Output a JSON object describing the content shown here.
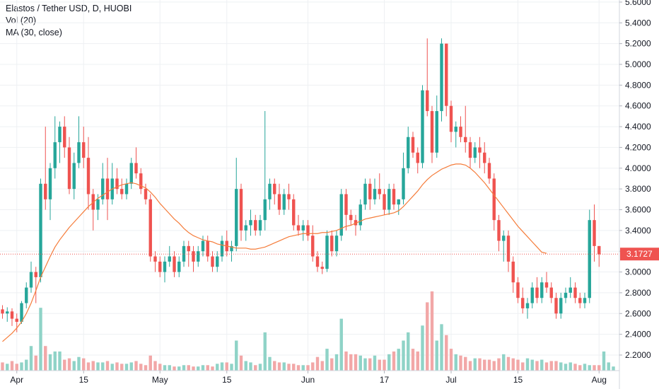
{
  "legend": {
    "title": "Elastos / Tether USD, D, HUOBI",
    "vol": "Vol (20)",
    "ma": "MA (30, close)"
  },
  "colors": {
    "up": "#26a69a",
    "down": "#ef5350",
    "up_volume": "#8fd3c7",
    "down_volume": "#f2a7a7",
    "ma": "#f57c3a",
    "grid": "#eef0f3",
    "last_price": "#ef5350"
  },
  "chart_data": {
    "type": "candlestick",
    "symbol": "Elastos / Tether USD",
    "interval": "D",
    "exchange": "HUOBI",
    "y_axis": {
      "min": 2.05,
      "max": 5.62,
      "ticks": [
        "5.6000",
        "5.4000",
        "5.2000",
        "5.0000",
        "4.8000",
        "4.6000",
        "4.4000",
        "4.2000",
        "4.0000",
        "3.8000",
        "3.6000",
        "3.4000",
        "3.2000",
        "3.0000",
        "2.8000",
        "2.6000",
        "2.4000",
        "2.2000"
      ],
      "last_price": "3.1727"
    },
    "x_axis": {
      "labels": [
        {
          "text": "Apr",
          "day": 3
        },
        {
          "text": "15",
          "day": 17
        },
        {
          "text": "May",
          "day": 33
        },
        {
          "text": "15",
          "day": 47
        },
        {
          "text": "Jun",
          "day": 64
        },
        {
          "text": "17",
          "day": 80
        },
        {
          "text": "Jul",
          "day": 94
        },
        {
          "text": "15",
          "day": 108
        },
        {
          "text": "Aug",
          "day": 125
        }
      ]
    },
    "candles": [
      [
        2.64,
        2.68,
        2.55,
        2.6
      ],
      [
        2.6,
        2.66,
        2.52,
        2.62
      ],
      [
        2.62,
        2.65,
        2.48,
        2.55
      ],
      [
        2.55,
        2.6,
        2.42,
        2.52
      ],
      [
        2.52,
        2.72,
        2.5,
        2.7
      ],
      [
        2.7,
        2.9,
        2.65,
        2.85
      ],
      [
        2.85,
        3.1,
        2.8,
        3.0
      ],
      [
        3.0,
        3.05,
        2.7,
        2.95
      ],
      [
        2.95,
        3.9,
        2.9,
        3.85
      ],
      [
        3.85,
        4.4,
        3.6,
        3.7
      ],
      [
        3.7,
        4.05,
        3.5,
        4.0
      ],
      [
        4.0,
        4.5,
        3.9,
        4.25
      ],
      [
        4.25,
        4.45,
        4.05,
        4.4
      ],
      [
        4.4,
        4.5,
        4.1,
        4.2
      ],
      [
        4.2,
        4.3,
        3.75,
        3.8
      ],
      [
        3.8,
        4.15,
        3.7,
        4.05
      ],
      [
        4.05,
        4.5,
        4.0,
        4.25
      ],
      [
        4.25,
        4.4,
        4.0,
        4.1
      ],
      [
        4.1,
        4.3,
        3.6,
        3.75
      ],
      [
        3.75,
        3.8,
        3.4,
        3.6
      ],
      [
        3.6,
        3.75,
        3.5,
        3.7
      ],
      [
        3.7,
        4.05,
        3.65,
        3.9
      ],
      [
        3.9,
        4.1,
        3.5,
        3.7
      ],
      [
        3.7,
        4.05,
        3.65,
        3.9
      ],
      [
        3.9,
        4.0,
        3.75,
        3.8
      ],
      [
        3.8,
        3.9,
        3.7,
        3.75
      ],
      [
        3.75,
        3.9,
        3.7,
        3.85
      ],
      [
        3.85,
        4.1,
        3.8,
        4.05
      ],
      [
        4.05,
        4.2,
        3.9,
        3.95
      ],
      [
        3.95,
        4.0,
        3.75,
        3.8
      ],
      [
        3.8,
        3.85,
        3.65,
        3.7
      ],
      [
        3.7,
        3.75,
        3.1,
        3.15
      ],
      [
        3.15,
        3.2,
        3.0,
        3.1
      ],
      [
        3.1,
        3.15,
        2.95,
        3.0
      ],
      [
        3.0,
        3.15,
        2.9,
        3.1
      ],
      [
        3.1,
        3.25,
        3.05,
        3.15
      ],
      [
        3.15,
        3.2,
        2.95,
        3.0
      ],
      [
        3.0,
        3.15,
        2.95,
        3.1
      ],
      [
        3.1,
        3.3,
        3.05,
        3.25
      ],
      [
        3.25,
        3.3,
        3.05,
        3.2
      ],
      [
        3.2,
        3.25,
        3.0,
        3.1
      ],
      [
        3.1,
        3.25,
        3.05,
        3.2
      ],
      [
        3.2,
        3.35,
        3.15,
        3.3
      ],
      [
        3.3,
        3.35,
        3.1,
        3.15
      ],
      [
        3.15,
        3.2,
        3.0,
        3.05
      ],
      [
        3.05,
        3.2,
        3.0,
        3.15
      ],
      [
        3.15,
        3.35,
        3.1,
        3.3
      ],
      [
        3.3,
        3.4,
        3.15,
        3.2
      ],
      [
        3.2,
        3.3,
        3.1,
        3.25
      ],
      [
        3.25,
        4.1,
        3.2,
        3.8
      ],
      [
        3.8,
        3.85,
        3.3,
        3.4
      ],
      [
        3.4,
        3.5,
        3.3,
        3.45
      ],
      [
        3.45,
        3.6,
        3.35,
        3.5
      ],
      [
        3.5,
        3.55,
        3.35,
        3.4
      ],
      [
        3.4,
        3.55,
        3.35,
        3.5
      ],
      [
        3.5,
        4.55,
        3.4,
        3.7
      ],
      [
        3.7,
        3.9,
        3.6,
        3.85
      ],
      [
        3.85,
        3.9,
        3.65,
        3.75
      ],
      [
        3.75,
        3.85,
        3.55,
        3.6
      ],
      [
        3.6,
        3.8,
        3.55,
        3.75
      ],
      [
        3.75,
        3.85,
        3.6,
        3.7
      ],
      [
        3.7,
        3.75,
        3.4,
        3.45
      ],
      [
        3.45,
        3.55,
        3.35,
        3.4
      ],
      [
        3.4,
        3.5,
        3.3,
        3.45
      ],
      [
        3.45,
        3.5,
        3.3,
        3.35
      ],
      [
        3.35,
        3.45,
        3.1,
        3.15
      ],
      [
        3.15,
        3.2,
        3.0,
        3.05
      ],
      [
        3.05,
        3.1,
        2.98,
        3.03
      ],
      [
        3.03,
        3.4,
        3.0,
        3.35
      ],
      [
        3.35,
        3.4,
        3.15,
        3.2
      ],
      [
        3.2,
        3.4,
        3.15,
        3.35
      ],
      [
        3.35,
        3.8,
        3.3,
        3.75
      ],
      [
        3.75,
        3.8,
        3.4,
        3.55
      ],
      [
        3.55,
        3.6,
        3.45,
        3.5
      ],
      [
        3.5,
        3.55,
        3.35,
        3.45
      ],
      [
        3.45,
        3.7,
        3.4,
        3.65
      ],
      [
        3.65,
        3.9,
        3.6,
        3.85
      ],
      [
        3.85,
        3.9,
        3.6,
        3.7
      ],
      [
        3.7,
        3.9,
        3.65,
        3.8
      ],
      [
        3.8,
        3.95,
        3.7,
        3.75
      ],
      [
        3.75,
        3.8,
        3.55,
        3.6
      ],
      [
        3.6,
        3.85,
        3.55,
        3.8
      ],
      [
        3.8,
        3.85,
        3.6,
        3.65
      ],
      [
        3.65,
        3.7,
        3.55,
        3.7
      ],
      [
        3.7,
        4.15,
        3.65,
        4.0
      ],
      [
        4.0,
        4.4,
        3.95,
        4.3
      ],
      [
        4.3,
        4.35,
        4.1,
        4.15
      ],
      [
        4.15,
        4.2,
        3.95,
        4.05
      ],
      [
        4.05,
        4.8,
        4.0,
        4.75
      ],
      [
        4.75,
        5.25,
        4.5,
        4.55
      ],
      [
        4.55,
        4.6,
        4.05,
        4.15
      ],
      [
        4.15,
        4.7,
        4.1,
        4.55
      ],
      [
        4.55,
        5.25,
        4.45,
        5.2
      ],
      [
        5.2,
        5.2,
        4.5,
        4.6
      ],
      [
        4.6,
        4.65,
        4.25,
        4.35
      ],
      [
        4.35,
        4.45,
        4.2,
        4.4
      ],
      [
        4.4,
        4.5,
        4.25,
        4.3
      ],
      [
        4.3,
        4.6,
        4.15,
        4.25
      ],
      [
        4.25,
        4.3,
        4.0,
        4.1
      ],
      [
        4.1,
        4.25,
        4.05,
        4.2
      ],
      [
        4.2,
        4.3,
        4.0,
        4.15
      ],
      [
        4.15,
        4.25,
        3.95,
        4.05
      ],
      [
        4.05,
        4.1,
        3.85,
        3.9
      ],
      [
        3.9,
        3.95,
        3.4,
        3.5
      ],
      [
        3.5,
        3.55,
        3.2,
        3.3
      ],
      [
        3.3,
        3.4,
        3.1,
        3.35
      ],
      [
        3.35,
        3.4,
        3.0,
        3.1
      ],
      [
        3.1,
        3.15,
        2.8,
        2.9
      ],
      [
        2.9,
        2.95,
        2.7,
        2.75
      ],
      [
        2.75,
        2.85,
        2.6,
        2.65
      ],
      [
        2.65,
        2.75,
        2.55,
        2.7
      ],
      [
        2.7,
        2.9,
        2.65,
        2.85
      ],
      [
        2.85,
        2.95,
        2.7,
        2.75
      ],
      [
        2.75,
        2.95,
        2.7,
        2.9
      ],
      [
        2.9,
        3.0,
        2.8,
        2.85
      ],
      [
        2.85,
        2.9,
        2.7,
        2.75
      ],
      [
        2.75,
        2.8,
        2.55,
        2.6
      ],
      [
        2.6,
        2.8,
        2.55,
        2.75
      ],
      [
        2.75,
        2.85,
        2.7,
        2.8
      ],
      [
        2.8,
        2.95,
        2.75,
        2.85
      ],
      [
        2.85,
        2.9,
        2.7,
        2.75
      ],
      [
        2.75,
        2.8,
        2.65,
        2.7
      ],
      [
        2.7,
        2.8,
        2.65,
        2.75
      ],
      [
        2.75,
        3.6,
        2.7,
        3.5
      ],
      [
        3.5,
        3.65,
        3.1,
        3.25
      ],
      [
        3.25,
        3.25,
        3.05,
        3.17
      ]
    ],
    "volumes": [
      0.3,
      0.25,
      0.35,
      0.25,
      0.3,
      0.4,
      0.9,
      0.55,
      2.3,
      0.9,
      0.6,
      0.7,
      0.7,
      0.4,
      0.45,
      0.35,
      0.5,
      0.45,
      0.3,
      0.35,
      0.3,
      0.3,
      0.35,
      0.25,
      0.3,
      0.25,
      0.25,
      0.3,
      0.35,
      0.25,
      0.2,
      0.55,
      0.35,
      0.25,
      0.2,
      0.2,
      0.15,
      0.15,
      0.2,
      0.2,
      0.15,
      0.15,
      0.2,
      0.2,
      0.15,
      0.25,
      0.3,
      0.3,
      0.25,
      1.1,
      0.55,
      0.35,
      0.3,
      0.2,
      0.25,
      1.4,
      0.5,
      0.35,
      0.3,
      0.3,
      0.25,
      0.25,
      0.2,
      0.2,
      0.2,
      0.3,
      0.5,
      0.35,
      0.8,
      0.45,
      0.6,
      1.9,
      0.7,
      0.6,
      0.6,
      0.55,
      0.45,
      0.45,
      0.55,
      0.4,
      0.4,
      0.6,
      0.7,
      0.8,
      1.1,
      1.4,
      0.8,
      0.7,
      1.65,
      2.5,
      2.9,
      1.1,
      1.7,
      1.3,
      0.8,
      0.6,
      0.55,
      0.5,
      0.35,
      0.45,
      0.45,
      0.4,
      0.4,
      0.35,
      0.45,
      0.6,
      0.5,
      0.45,
      0.4,
      0.3,
      0.45,
      0.4,
      0.35,
      0.4,
      0.3,
      0.35,
      0.35,
      0.3,
      0.25,
      0.3,
      0.25,
      0.2,
      0.25,
      0.2,
      0.2,
      0.2,
      0.7,
      0.3,
      0.15
    ],
    "ma": {
      "period": 30,
      "start": 0,
      "values": [
        2.33,
        2.37,
        2.41,
        2.46,
        2.52,
        2.6,
        2.7,
        2.82,
        2.95,
        3.05,
        3.15,
        3.24,
        3.31,
        3.37,
        3.43,
        3.48,
        3.53,
        3.58,
        3.63,
        3.67,
        3.71,
        3.74,
        3.77,
        3.8,
        3.82,
        3.84,
        3.85,
        3.86,
        3.85,
        3.83,
        3.81,
        3.77,
        3.72,
        3.66,
        3.61,
        3.56,
        3.51,
        3.47,
        3.42,
        3.38,
        3.35,
        3.33,
        3.31,
        3.3,
        3.29,
        3.27,
        3.26,
        3.25,
        3.24,
        3.23,
        3.23,
        3.23,
        3.22,
        3.22,
        3.23,
        3.24,
        3.26,
        3.28,
        3.3,
        3.32,
        3.34,
        3.35,
        3.36,
        3.37,
        3.37,
        3.37,
        3.37,
        3.38,
        3.38,
        3.39,
        3.4,
        3.42,
        3.44,
        3.45,
        3.47,
        3.49,
        3.51,
        3.52,
        3.53,
        3.54,
        3.55,
        3.56,
        3.57,
        3.59,
        3.63,
        3.68,
        3.73,
        3.78,
        3.84,
        3.89,
        3.93,
        3.96,
        3.99,
        4.01,
        4.03,
        4.04,
        4.04,
        4.03,
        4.0,
        3.96,
        3.91,
        3.86,
        3.8,
        3.74,
        3.68,
        3.62,
        3.56,
        3.5,
        3.44,
        3.39,
        3.34,
        3.29,
        3.24,
        3.19,
        3.18
      ]
    }
  }
}
